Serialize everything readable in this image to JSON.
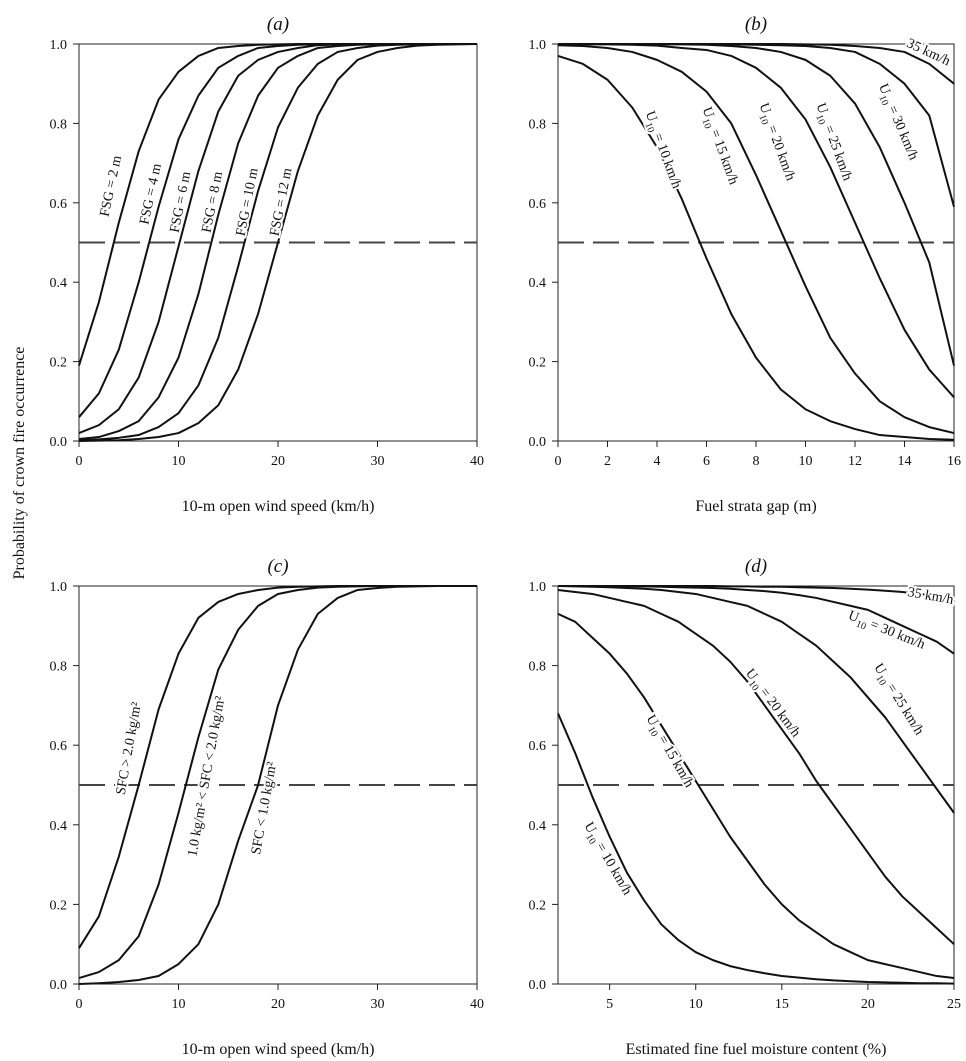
{
  "figure": {
    "ylabel": "Probability of crown fire occurrence"
  },
  "chart_data": [
    {
      "id": "a",
      "type": "line",
      "title": "(a)",
      "xlabel": "10-m open wind speed (km/h)",
      "ylabel": "Probability of crown fire occurrence",
      "xlim": [
        0,
        40
      ],
      "ylim": [
        0,
        1
      ],
      "xticks": [
        "0",
        "10",
        "20",
        "30",
        "40"
      ],
      "yticks": [
        "0.0",
        "0.2",
        "0.4",
        "0.6",
        "0.8",
        "1.0"
      ],
      "reference_line": {
        "y": 0.5,
        "style": "dashed"
      },
      "x": [
        0,
        2,
        4,
        6,
        8,
        10,
        12,
        14,
        16,
        18,
        20,
        22,
        24,
        26,
        28,
        30,
        32,
        34,
        36,
        38,
        40
      ],
      "series": [
        {
          "label": "FSG = 2 m",
          "values": [
            0.19,
            0.35,
            0.55,
            0.73,
            0.86,
            0.93,
            0.97,
            0.99,
            0.995,
            0.998,
            0.999,
            1.0,
            1.0,
            1.0,
            1.0,
            1.0,
            1.0,
            1.0,
            1.0,
            1.0,
            1.0
          ]
        },
        {
          "label": "FSG = 4 m",
          "values": [
            0.06,
            0.12,
            0.23,
            0.4,
            0.59,
            0.76,
            0.87,
            0.94,
            0.97,
            0.99,
            0.995,
            0.998,
            0.999,
            1.0,
            1.0,
            1.0,
            1.0,
            1.0,
            1.0,
            1.0,
            1.0
          ]
        },
        {
          "label": "FSG = 6 m",
          "values": [
            0.02,
            0.04,
            0.08,
            0.16,
            0.3,
            0.49,
            0.68,
            0.83,
            0.92,
            0.96,
            0.98,
            0.99,
            0.997,
            0.999,
            1.0,
            1.0,
            1.0,
            1.0,
            1.0,
            1.0,
            1.0
          ]
        },
        {
          "label": "FSG = 8 m",
          "values": [
            0.005,
            0.01,
            0.025,
            0.05,
            0.11,
            0.21,
            0.37,
            0.57,
            0.75,
            0.87,
            0.94,
            0.97,
            0.99,
            0.995,
            0.998,
            0.999,
            1.0,
            1.0,
            1.0,
            1.0,
            1.0
          ]
        },
        {
          "label": "FSG = 10 m",
          "values": [
            0.002,
            0.004,
            0.008,
            0.015,
            0.035,
            0.07,
            0.14,
            0.26,
            0.44,
            0.63,
            0.79,
            0.89,
            0.95,
            0.98,
            0.99,
            0.996,
            0.998,
            0.999,
            1.0,
            1.0,
            1.0
          ]
        },
        {
          "label": "FSG = 12 m",
          "values": [
            0.0,
            0.001,
            0.002,
            0.005,
            0.01,
            0.02,
            0.045,
            0.09,
            0.18,
            0.32,
            0.5,
            0.68,
            0.82,
            0.91,
            0.96,
            0.98,
            0.99,
            0.996,
            0.998,
            0.999,
            1.0
          ]
        }
      ]
    },
    {
      "id": "b",
      "type": "line",
      "title": "(b)",
      "xlabel": "Fuel strata gap (m)",
      "ylabel": "",
      "xlim": [
        0,
        16
      ],
      "ylim": [
        0,
        1
      ],
      "xticks": [
        "0",
        "2",
        "4",
        "6",
        "8",
        "10",
        "12",
        "14",
        "16"
      ],
      "yticks": [
        "0.0",
        "0.2",
        "0.4",
        "0.6",
        "0.8",
        "1.0"
      ],
      "reference_line": {
        "y": 0.5,
        "style": "dashed"
      },
      "x": [
        0,
        1,
        2,
        3,
        4,
        5,
        6,
        7,
        8,
        9,
        10,
        11,
        12,
        13,
        14,
        15,
        16
      ],
      "series": [
        {
          "label": "U10 = 10 km/h",
          "values": [
            0.97,
            0.95,
            0.91,
            0.84,
            0.74,
            0.61,
            0.46,
            0.32,
            0.21,
            0.13,
            0.08,
            0.05,
            0.03,
            0.015,
            0.01,
            0.005,
            0.003
          ]
        },
        {
          "label": "U10 = 15 km/h",
          "values": [
            0.997,
            0.995,
            0.99,
            0.98,
            0.96,
            0.93,
            0.88,
            0.8,
            0.67,
            0.53,
            0.39,
            0.26,
            0.17,
            0.1,
            0.06,
            0.035,
            0.02
          ]
        },
        {
          "label": "U10 = 20 km/h",
          "values": [
            1.0,
            0.999,
            0.999,
            0.998,
            0.996,
            0.99,
            0.985,
            0.97,
            0.94,
            0.89,
            0.81,
            0.69,
            0.55,
            0.41,
            0.28,
            0.18,
            0.11
          ]
        },
        {
          "label": "U10 = 25 km/h",
          "values": [
            1.0,
            1.0,
            1.0,
            1.0,
            0.999,
            0.999,
            0.998,
            0.995,
            0.99,
            0.98,
            0.96,
            0.92,
            0.85,
            0.74,
            0.6,
            0.45,
            0.19
          ]
        },
        {
          "label": "U10 = 30 km/h",
          "values": [
            1.0,
            1.0,
            1.0,
            1.0,
            1.0,
            1.0,
            1.0,
            0.999,
            0.998,
            0.997,
            0.995,
            0.99,
            0.98,
            0.95,
            0.9,
            0.82,
            0.59
          ]
        },
        {
          "label": "35 km/h",
          "values": [
            1.0,
            1.0,
            1.0,
            1.0,
            1.0,
            1.0,
            1.0,
            1.0,
            1.0,
            1.0,
            0.999,
            0.998,
            0.995,
            0.99,
            0.98,
            0.95,
            0.9
          ]
        }
      ]
    },
    {
      "id": "c",
      "type": "line",
      "title": "(c)",
      "xlabel": "10-m open wind speed (km/h)",
      "ylabel": "Probability of crown fire occurrence",
      "xlim": [
        0,
        40
      ],
      "ylim": [
        0,
        1
      ],
      "xticks": [
        "0",
        "10",
        "20",
        "30",
        "40"
      ],
      "yticks": [
        "0.0",
        "0.2",
        "0.4",
        "0.6",
        "0.8",
        "1.0"
      ],
      "reference_line": {
        "y": 0.5,
        "style": "dashed"
      },
      "x": [
        0,
        2,
        4,
        6,
        8,
        10,
        12,
        14,
        16,
        18,
        20,
        22,
        24,
        26,
        28,
        30,
        32,
        34,
        36,
        38,
        40
      ],
      "series": [
        {
          "label": "SFC > 2.0 kg/m²",
          "values": [
            0.09,
            0.17,
            0.32,
            0.5,
            0.69,
            0.83,
            0.92,
            0.96,
            0.98,
            0.99,
            0.996,
            0.998,
            0.999,
            1.0,
            1.0,
            1.0,
            1.0,
            1.0,
            1.0,
            1.0,
            1.0
          ]
        },
        {
          "label": "1.0 kg/m² < SFC < 2.0 kg/m²",
          "values": [
            0.015,
            0.03,
            0.06,
            0.12,
            0.25,
            0.43,
            0.62,
            0.79,
            0.89,
            0.95,
            0.98,
            0.99,
            0.996,
            0.998,
            0.999,
            1.0,
            1.0,
            1.0,
            1.0,
            1.0,
            1.0
          ]
        },
        {
          "label": "SFC < 1.0 kg/m²",
          "values": [
            0.0,
            0.002,
            0.005,
            0.01,
            0.02,
            0.05,
            0.1,
            0.2,
            0.36,
            0.5,
            0.7,
            0.84,
            0.93,
            0.97,
            0.99,
            0.995,
            0.998,
            0.999,
            1.0,
            1.0,
            1.0
          ]
        }
      ]
    },
    {
      "id": "d",
      "type": "line",
      "title": "(d)",
      "xlabel": "Estimated fine fuel moisture content (%)",
      "ylabel": "",
      "xlim": [
        2,
        25
      ],
      "ylim": [
        0,
        1
      ],
      "xticks": [
        "5",
        "10",
        "15",
        "20",
        "25"
      ],
      "yticks": [
        "0.0",
        "0.2",
        "0.4",
        "0.6",
        "0.8",
        "1.0"
      ],
      "reference_line": {
        "y": 0.5,
        "style": "dashed"
      },
      "x": [
        2,
        3,
        4,
        5,
        6,
        7,
        8,
        9,
        10,
        11,
        12,
        13,
        14,
        15,
        16,
        17,
        18,
        19,
        20,
        21,
        22,
        23,
        24,
        25
      ],
      "series": [
        {
          "label": "U10 = 10 km/h",
          "values": [
            0.68,
            0.58,
            0.47,
            0.37,
            0.28,
            0.21,
            0.15,
            0.11,
            0.08,
            0.06,
            0.045,
            0.035,
            0.027,
            0.02,
            0.016,
            0.012,
            0.009,
            0.007,
            0.005,
            0.004,
            0.003,
            0.002,
            0.002,
            0.001
          ]
        },
        {
          "label": "U10 = 15 km/h",
          "values": [
            0.93,
            0.91,
            0.87,
            0.83,
            0.78,
            0.72,
            0.65,
            0.58,
            0.51,
            0.44,
            0.37,
            0.31,
            0.25,
            0.2,
            0.16,
            0.13,
            0.1,
            0.08,
            0.06,
            0.05,
            0.04,
            0.03,
            0.02,
            0.015
          ]
        },
        {
          "label": "U10 = 20 km/h",
          "values": [
            0.99,
            0.985,
            0.98,
            0.97,
            0.96,
            0.95,
            0.93,
            0.91,
            0.88,
            0.85,
            0.81,
            0.76,
            0.7,
            0.64,
            0.58,
            0.51,
            0.45,
            0.39,
            0.33,
            0.27,
            0.22,
            0.18,
            0.14,
            0.1
          ]
        },
        {
          "label": "U10 = 25 km/h",
          "values": [
            1.0,
            0.999,
            0.998,
            0.997,
            0.995,
            0.993,
            0.99,
            0.985,
            0.98,
            0.97,
            0.96,
            0.95,
            0.93,
            0.91,
            0.88,
            0.85,
            0.81,
            0.77,
            0.72,
            0.67,
            0.61,
            0.55,
            0.49,
            0.43
          ]
        },
        {
          "label": "U10 = 30 km/h",
          "values": [
            1.0,
            1.0,
            1.0,
            1.0,
            0.999,
            0.999,
            0.998,
            0.997,
            0.996,
            0.995,
            0.993,
            0.99,
            0.987,
            0.983,
            0.977,
            0.97,
            0.96,
            0.95,
            0.94,
            0.92,
            0.9,
            0.88,
            0.86,
            0.83
          ]
        },
        {
          "label": "35 km/h",
          "values": [
            1.0,
            1.0,
            1.0,
            1.0,
            1.0,
            1.0,
            1.0,
            1.0,
            1.0,
            1.0,
            0.999,
            0.999,
            0.998,
            0.998,
            0.997,
            0.996,
            0.995,
            0.993,
            0.991,
            0.988,
            0.985,
            0.98,
            0.975,
            0.97
          ]
        }
      ]
    }
  ]
}
